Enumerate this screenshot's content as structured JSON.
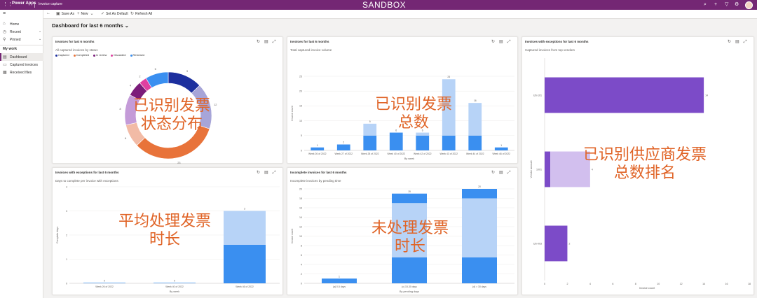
{
  "header": {
    "app_brand": "Power Apps",
    "app_name": "Invoice capture",
    "environment": "SANDBOX"
  },
  "nav": {
    "home": "Home",
    "recent": "Recent",
    "pinned": "Pinned",
    "group": "My work",
    "dashboard": "Dashboard",
    "captured": "Captured invoices",
    "received": "Received files"
  },
  "toolbar": {
    "save_as": "Save As",
    "new": "New",
    "set_default": "Set As Default",
    "refresh": "Refresh All"
  },
  "dashboard_title": "Dashboard for last 6 months",
  "cards": {
    "donut": {
      "title": "Invoices for last 6 months",
      "subtitle": "All captured invoices by status",
      "overlay1": "已识别发票",
      "overlay2": "状态分布"
    },
    "weekly": {
      "title": "Invoices for last 6 months",
      "subtitle": "Total captured invoice volume",
      "overlay1": "已识别发票",
      "overlay2": "总数"
    },
    "vendors": {
      "title": "Invoices with exceptions for last 6 months",
      "subtitle": "Captured invoices from top vendors",
      "overlay1": "已识别供应商发票",
      "overlay2": "总数排名"
    },
    "days": {
      "title": "Invoices with exceptions for last 6 months",
      "subtitle": "Days to complete per invoice with exceptions",
      "overlay1": "平均处理发票",
      "overlay2": "时长"
    },
    "pending": {
      "title": "Incomplete invoices for last 6 months",
      "subtitle": "Incomplete invoices by pending time",
      "overlay1": "未处理发票",
      "overlay2": "时长"
    }
  },
  "chart_data": [
    {
      "type": "pie",
      "legend": [
        "Captured",
        "Completed",
        "In review",
        "Discarded",
        "Reviewed"
      ],
      "legend_colors": [
        "#1c2f9e",
        "#e8733a",
        "#7b1c7a",
        "#e040a0",
        "#3a8ff0"
      ],
      "slices": [
        {
          "value": 9,
          "color": "#1c2f9e"
        },
        {
          "value": 12,
          "color": "#a7a5d8"
        },
        {
          "value": 23,
          "color": "#e8733a"
        },
        {
          "value": 6,
          "color": "#f2bba6"
        },
        {
          "value": 8,
          "color": "#c49bd8"
        },
        {
          "value": 4,
          "color": "#7b1c7a"
        },
        {
          "value": 2,
          "color": "#e040a0"
        },
        {
          "value": 6,
          "color": "#3a8ff0"
        }
      ],
      "data_labels": [
        "9",
        "12",
        "23",
        "6",
        "8",
        "4",
        "2",
        "6"
      ]
    },
    {
      "type": "bar",
      "ylabel": "Invoice count",
      "xlabel": "By week",
      "ylim": [
        0,
        25
      ],
      "yticks": [
        "0",
        "5",
        "10",
        "15",
        "20",
        "25"
      ],
      "categories": [
        "Week 26 of 2022",
        "Week 27 of 2022",
        "Week 28 of 2022",
        "Week 40 of 2022",
        "Week 42 of 2022",
        "Week 43 of 2022",
        "Week 44 of 2022",
        "Week 46 of 2022"
      ],
      "series": [
        {
          "values": [
            1,
            2,
            5,
            6,
            5,
            5,
            5,
            1
          ],
          "color": "#3a8ff0"
        },
        {
          "values": [
            0,
            0,
            4,
            0,
            1,
            19,
            11,
            0
          ],
          "color": "#b7d3f7"
        }
      ],
      "totals": [
        "1",
        "2",
        "9",
        "6",
        "6",
        "24",
        "16",
        "1"
      ]
    },
    {
      "type": "bar",
      "orientation": "horizontal",
      "xlabel": "Invoice count",
      "ylabel": "Vendor account",
      "xlim": [
        0,
        18
      ],
      "xticks": [
        "0",
        "2",
        "4",
        "6",
        "8",
        "10",
        "12",
        "14",
        "16",
        "18"
      ],
      "categories": [
        "US-101",
        "1001",
        "US-003"
      ],
      "series": [
        {
          "values": [
            14,
            0.5,
            2
          ],
          "color": "#7c4bc8"
        },
        {
          "values": [
            0,
            3.5,
            0
          ],
          "color": "#d2bfee"
        }
      ],
      "totals": [
        "14",
        "4",
        "2"
      ]
    },
    {
      "type": "bar",
      "ylabel": "Complete days",
      "xlabel": "By week",
      "ylim": [
        0,
        4
      ],
      "yticks": [
        "0",
        "1",
        "2",
        "3",
        "4"
      ],
      "categories": [
        "Week 26 of 2022",
        "Week 40 of 2022",
        "Week 46 of 2022"
      ],
      "series": [
        {
          "values": [
            0.02,
            0.02,
            1.6
          ],
          "color": "#3a8ff0"
        },
        {
          "values": [
            0,
            0,
            1.4
          ],
          "color": "#b7d3f7"
        }
      ],
      "totals": [
        "0",
        "0",
        "3"
      ]
    },
    {
      "type": "bar",
      "ylabel": "Invoice count",
      "xlabel": "By pending days",
      "ylim": [
        0,
        20
      ],
      "yticks": [
        "0",
        "2",
        "4",
        "6",
        "8",
        "10",
        "12",
        "14",
        "16",
        "18",
        "20"
      ],
      "categories": [
        "(a) 0-5 days",
        "(c) 15-30 days",
        "(d) > 30 days"
      ],
      "series": [
        {
          "values": [
            1,
            5.5,
            5.5
          ],
          "color": "#3a8ff0"
        },
        {
          "values": [
            0,
            11.5,
            12.5
          ],
          "color": "#b7d3f7"
        },
        {
          "values": [
            0,
            2,
            2
          ],
          "color": "#3a8ff0"
        }
      ],
      "totals": [
        "1",
        "19",
        "20"
      ]
    }
  ]
}
